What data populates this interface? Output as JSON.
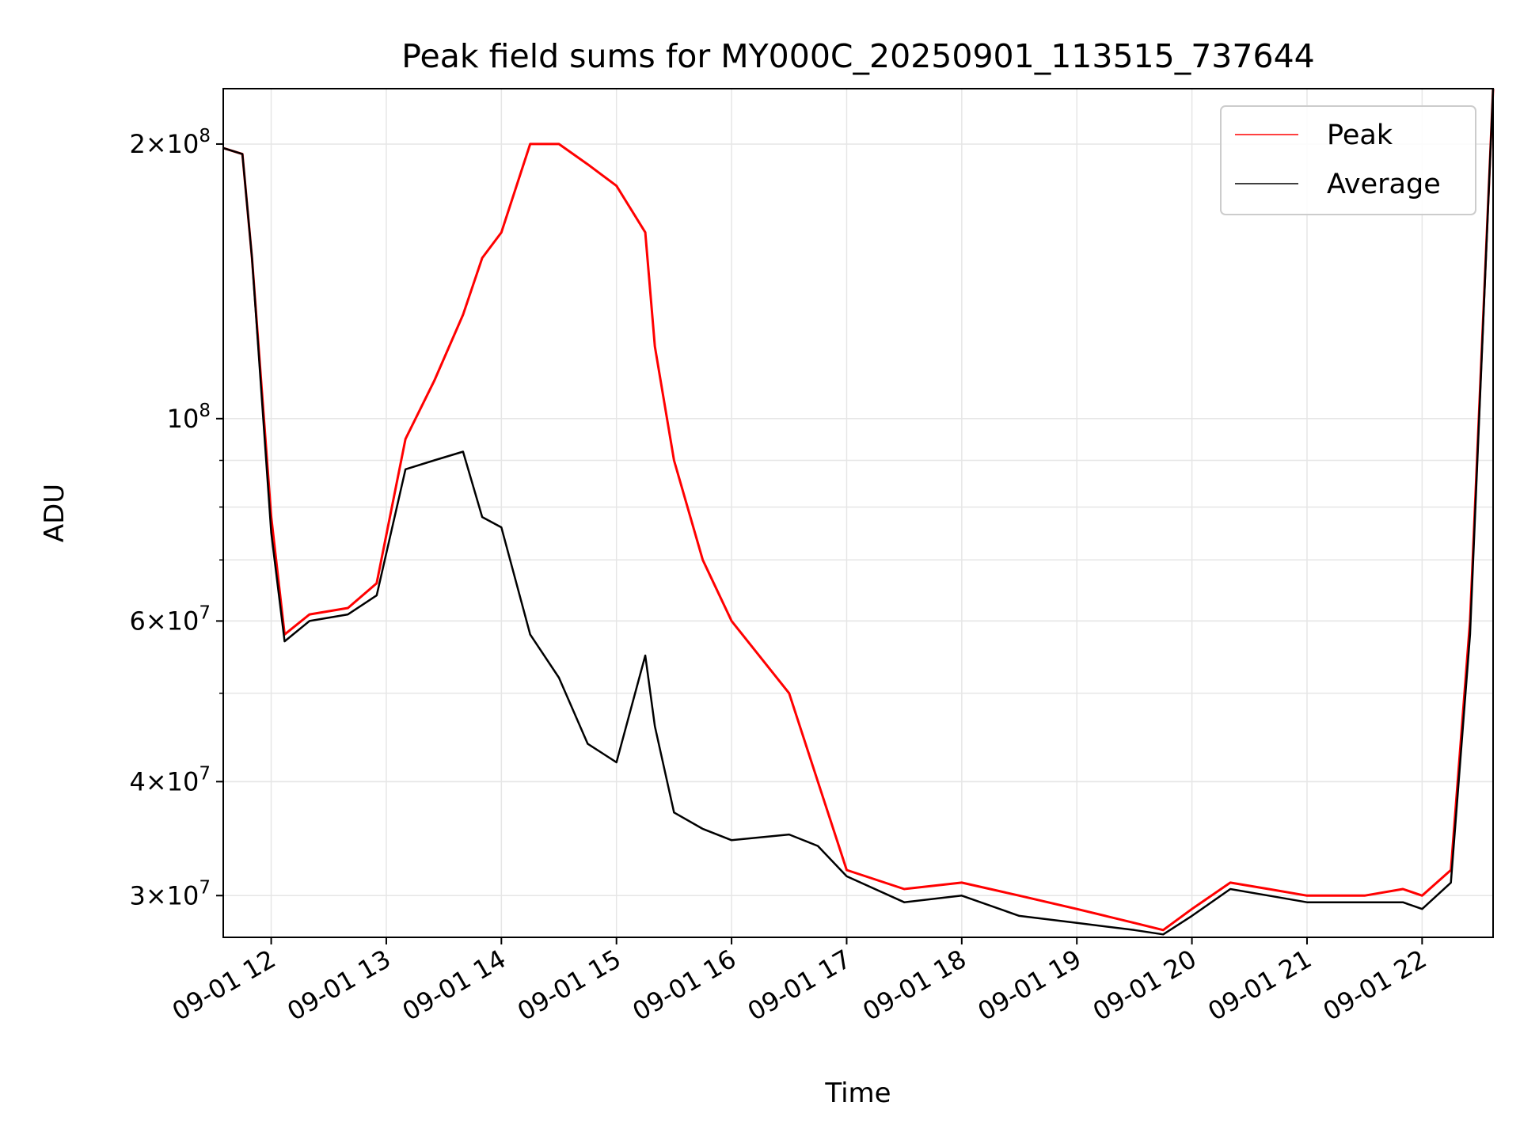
{
  "chart_data": {
    "type": "line",
    "title": "Peak field sums for MY000C_20250901_113515_737644",
    "xlabel": "Time",
    "ylabel": "ADU",
    "yscale": "log",
    "xlim": [
      "09-01 11:35",
      "09-01 22:37"
    ],
    "ylim": [
      27000000,
      230000000
    ],
    "grid": true,
    "legend": "upper right",
    "x_ticks": [
      "09-01 12",
      "09-01 13",
      "09-01 14",
      "09-01 15",
      "09-01 16",
      "09-01 17",
      "09-01 18",
      "09-01 19",
      "09-01 20",
      "09-01 21",
      "09-01 22"
    ],
    "y_ticks": [
      {
        "value": 30000000,
        "mantissa": "3",
        "exp": "7"
      },
      {
        "value": 40000000,
        "mantissa": "4",
        "exp": "7"
      },
      {
        "value": 60000000,
        "mantissa": "6",
        "exp": "7"
      },
      {
        "value": 100000000,
        "mantissa": "",
        "exp": "8"
      },
      {
        "value": 200000000,
        "mantissa": "2",
        "exp": "8"
      }
    ],
    "series": [
      {
        "name": "Peak",
        "color": "#ff0000",
        "x": [
          "09-01 11:35",
          "09-01 11:45",
          "09-01 11:50",
          "09-01 12:00",
          "09-01 12:07",
          "09-01 12:20",
          "09-01 12:40",
          "09-01 12:55",
          "09-01 13:10",
          "09-01 13:25",
          "09-01 13:40",
          "09-01 13:50",
          "09-01 14:00",
          "09-01 14:15",
          "09-01 14:30",
          "09-01 14:45",
          "09-01 15:00",
          "09-01 15:15",
          "09-01 15:20",
          "09-01 15:30",
          "09-01 15:45",
          "09-01 16:00",
          "09-01 16:30",
          "09-01 16:45",
          "09-01 17:00",
          "09-01 17:30",
          "09-01 18:00",
          "09-01 18:30",
          "09-01 19:00",
          "09-01 19:30",
          "09-01 19:45",
          "09-01 20:00",
          "09-01 20:20",
          "09-01 20:40",
          "09-01 21:00",
          "09-01 21:30",
          "09-01 21:50",
          "09-01 22:00",
          "09-01 22:15",
          "09-01 22:25",
          "09-01 22:37"
        ],
        "y": [
          198000000,
          195000000,
          150000000,
          78000000,
          58000000,
          61000000,
          62000000,
          66000000,
          95000000,
          110000000,
          130000000,
          150000000,
          160000000,
          200000000,
          200000000,
          190000000,
          180000000,
          160000000,
          120000000,
          90000000,
          70000000,
          60000000,
          50000000,
          40000000,
          32000000,
          30500000,
          31000000,
          30000000,
          29000000,
          28000000,
          27500000,
          29000000,
          31000000,
          30500000,
          30000000,
          30000000,
          30500000,
          30000000,
          32000000,
          60000000,
          230000000
        ]
      },
      {
        "name": "Average",
        "color": "#000000",
        "x": [
          "09-01 11:35",
          "09-01 11:45",
          "09-01 11:50",
          "09-01 12:00",
          "09-01 12:07",
          "09-01 12:20",
          "09-01 12:40",
          "09-01 12:55",
          "09-01 13:10",
          "09-01 13:25",
          "09-01 13:40",
          "09-01 13:50",
          "09-01 14:00",
          "09-01 14:15",
          "09-01 14:30",
          "09-01 14:45",
          "09-01 15:00",
          "09-01 15:15",
          "09-01 15:20",
          "09-01 15:30",
          "09-01 15:45",
          "09-01 16:00",
          "09-01 16:30",
          "09-01 16:45",
          "09-01 17:00",
          "09-01 17:30",
          "09-01 18:00",
          "09-01 18:30",
          "09-01 19:00",
          "09-01 19:30",
          "09-01 19:45",
          "09-01 20:00",
          "09-01 20:20",
          "09-01 20:40",
          "09-01 21:00",
          "09-01 21:30",
          "09-01 21:50",
          "09-01 22:00",
          "09-01 22:15",
          "09-01 22:25",
          "09-01 22:37"
        ],
        "y": [
          198000000,
          195000000,
          150000000,
          75000000,
          57000000,
          60000000,
          61000000,
          64000000,
          88000000,
          90000000,
          92000000,
          78000000,
          76000000,
          58000000,
          52000000,
          44000000,
          42000000,
          55000000,
          46000000,
          37000000,
          35500000,
          34500000,
          35000000,
          34000000,
          31500000,
          29500000,
          30000000,
          28500000,
          28000000,
          27500000,
          27200000,
          28500000,
          30500000,
          30000000,
          29500000,
          29500000,
          29500000,
          29000000,
          31000000,
          58000000,
          230000000
        ]
      }
    ]
  }
}
